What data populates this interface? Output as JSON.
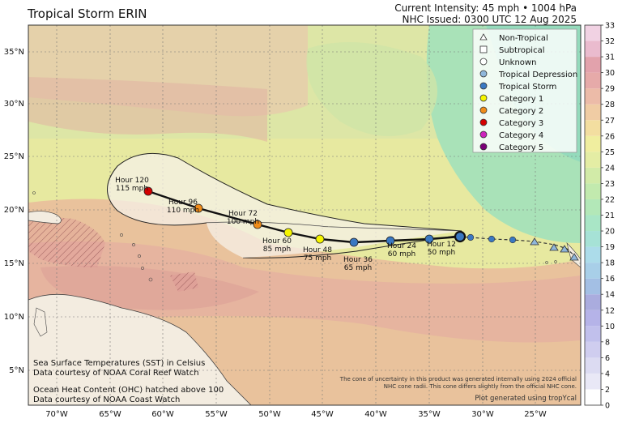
{
  "header": {
    "title": "Tropical Storm ERIN",
    "intensity": "Current Intensity: 45 mph • 1004 hPa",
    "issued": "NHC Issued: 0300 UTC 12 Aug 2025"
  },
  "map": {
    "lat_labels": [
      "35°N",
      "30°N",
      "25°N",
      "20°N",
      "15°N",
      "10°N",
      "5°N"
    ],
    "lon_labels": [
      "70°W",
      "65°W",
      "60°W",
      "55°W",
      "50°W",
      "45°W",
      "40°W",
      "35°W",
      "30°W",
      "25°W"
    ]
  },
  "legend": [
    {
      "label": "Non-Tropical",
      "marker": "triangle",
      "color": "#ffffff"
    },
    {
      "label": "Subtropical",
      "marker": "square",
      "color": "#ffffff"
    },
    {
      "label": "Unknown",
      "marker": "circle",
      "color": "#ffffff"
    },
    {
      "label": "Tropical Depression",
      "marker": "circle",
      "color": "#8fb6da"
    },
    {
      "label": "Tropical Storm",
      "marker": "circle",
      "color": "#3a78c2"
    },
    {
      "label": "Category 1",
      "marker": "circle",
      "color": "#f5f500"
    },
    {
      "label": "Category 2",
      "marker": "circle",
      "color": "#f08c1a"
    },
    {
      "label": "Category 3",
      "marker": "circle",
      "color": "#d40000"
    },
    {
      "label": "Category 4",
      "marker": "circle",
      "color": "#cc22bb"
    },
    {
      "label": "Category 5",
      "marker": "circle",
      "color": "#7a0077"
    }
  ],
  "forecast": [
    {
      "hour": "Hour 12",
      "wind": "50 mph"
    },
    {
      "hour": "Hour 24",
      "wind": "60 mph"
    },
    {
      "hour": "Hour 36",
      "wind": "65 mph"
    },
    {
      "hour": "Hour 48",
      "wind": "75 mph"
    },
    {
      "hour": "Hour 60",
      "wind": "85 mph"
    },
    {
      "hour": "Hour 72",
      "wind": "100 mph"
    },
    {
      "hour": "Hour 96",
      "wind": "110 mph"
    },
    {
      "hour": "Hour 120",
      "wind": "115 mph"
    }
  ],
  "colorbar": {
    "ticks": [
      "0",
      "2",
      "4",
      "6",
      "8",
      "10",
      "12",
      "14",
      "16",
      "18",
      "19",
      "20",
      "21",
      "22",
      "23",
      "24",
      "25",
      "26",
      "27",
      "28",
      "29",
      "30",
      "31",
      "32",
      "33"
    ]
  },
  "notes": {
    "sst1": "Sea Surface Temperatures (SST) in Celsius",
    "sst2": "Data courtesy of NOAA Coral Reef Watch",
    "ohc1": "Ocean Heat Content (OHC) hatched above 100",
    "ohc2": "Data courtesy of NOAA Coast Watch",
    "cone1": "The cone of uncertainty in this product was generated internally using 2024 official",
    "cone2": "NHC cone radii. This cone differs slightly from the official NHC cone.",
    "credit": "Plot generated using tropYcal"
  }
}
